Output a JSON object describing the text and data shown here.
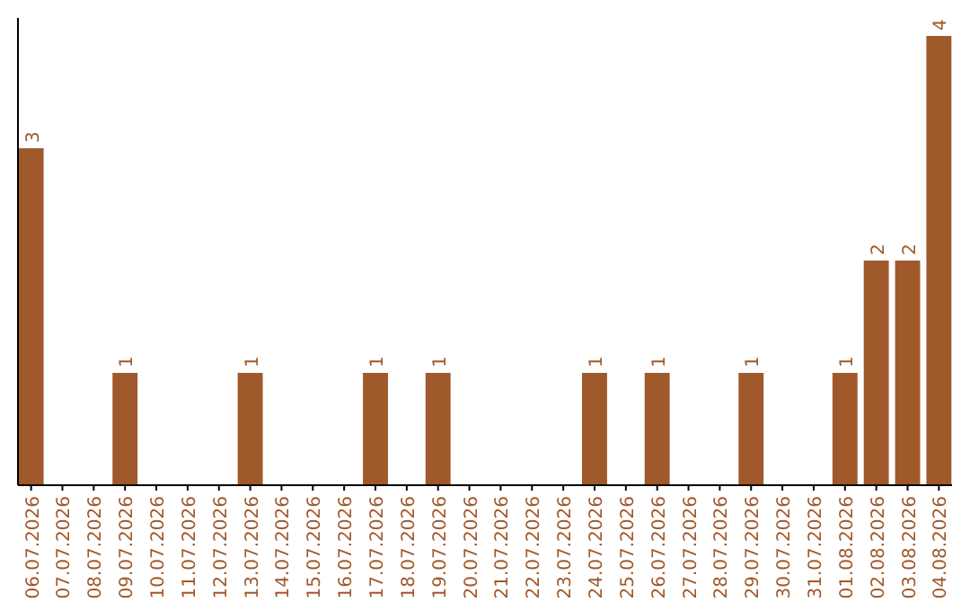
{
  "chart_data": {
    "type": "bar",
    "categories": [
      "06.07.2026",
      "07.07.2026",
      "08.07.2026",
      "09.07.2026",
      "10.07.2026",
      "11.07.2026",
      "12.07.2026",
      "13.07.2026",
      "14.07.2026",
      "15.07.2026",
      "16.07.2026",
      "17.07.2026",
      "18.07.2026",
      "19.07.2026",
      "20.07.2026",
      "21.07.2026",
      "22.07.2026",
      "23.07.2026",
      "24.07.2026",
      "25.07.2026",
      "26.07.2026",
      "27.07.2026",
      "28.07.2026",
      "29.07.2026",
      "30.07.2026",
      "31.07.2026",
      "01.08.2026",
      "02.08.2026",
      "03.08.2026",
      "04.08.2026"
    ],
    "values": [
      3,
      0,
      0,
      1,
      0,
      0,
      0,
      1,
      0,
      0,
      0,
      1,
      0,
      1,
      0,
      0,
      0,
      0,
      1,
      0,
      1,
      0,
      0,
      1,
      0,
      0,
      1,
      2,
      2,
      4
    ],
    "value_labels": [
      "3",
      null,
      null,
      "1",
      null,
      null,
      null,
      "1",
      null,
      null,
      null,
      "1",
      null,
      "1",
      null,
      null,
      null,
      null,
      "1",
      null,
      "1",
      null,
      null,
      "1",
      null,
      null,
      "1",
      "2",
      "2",
      "4"
    ],
    "color": "#a0592a",
    "ylim": [
      0,
      4
    ],
    "tick_labels": "x"
  }
}
